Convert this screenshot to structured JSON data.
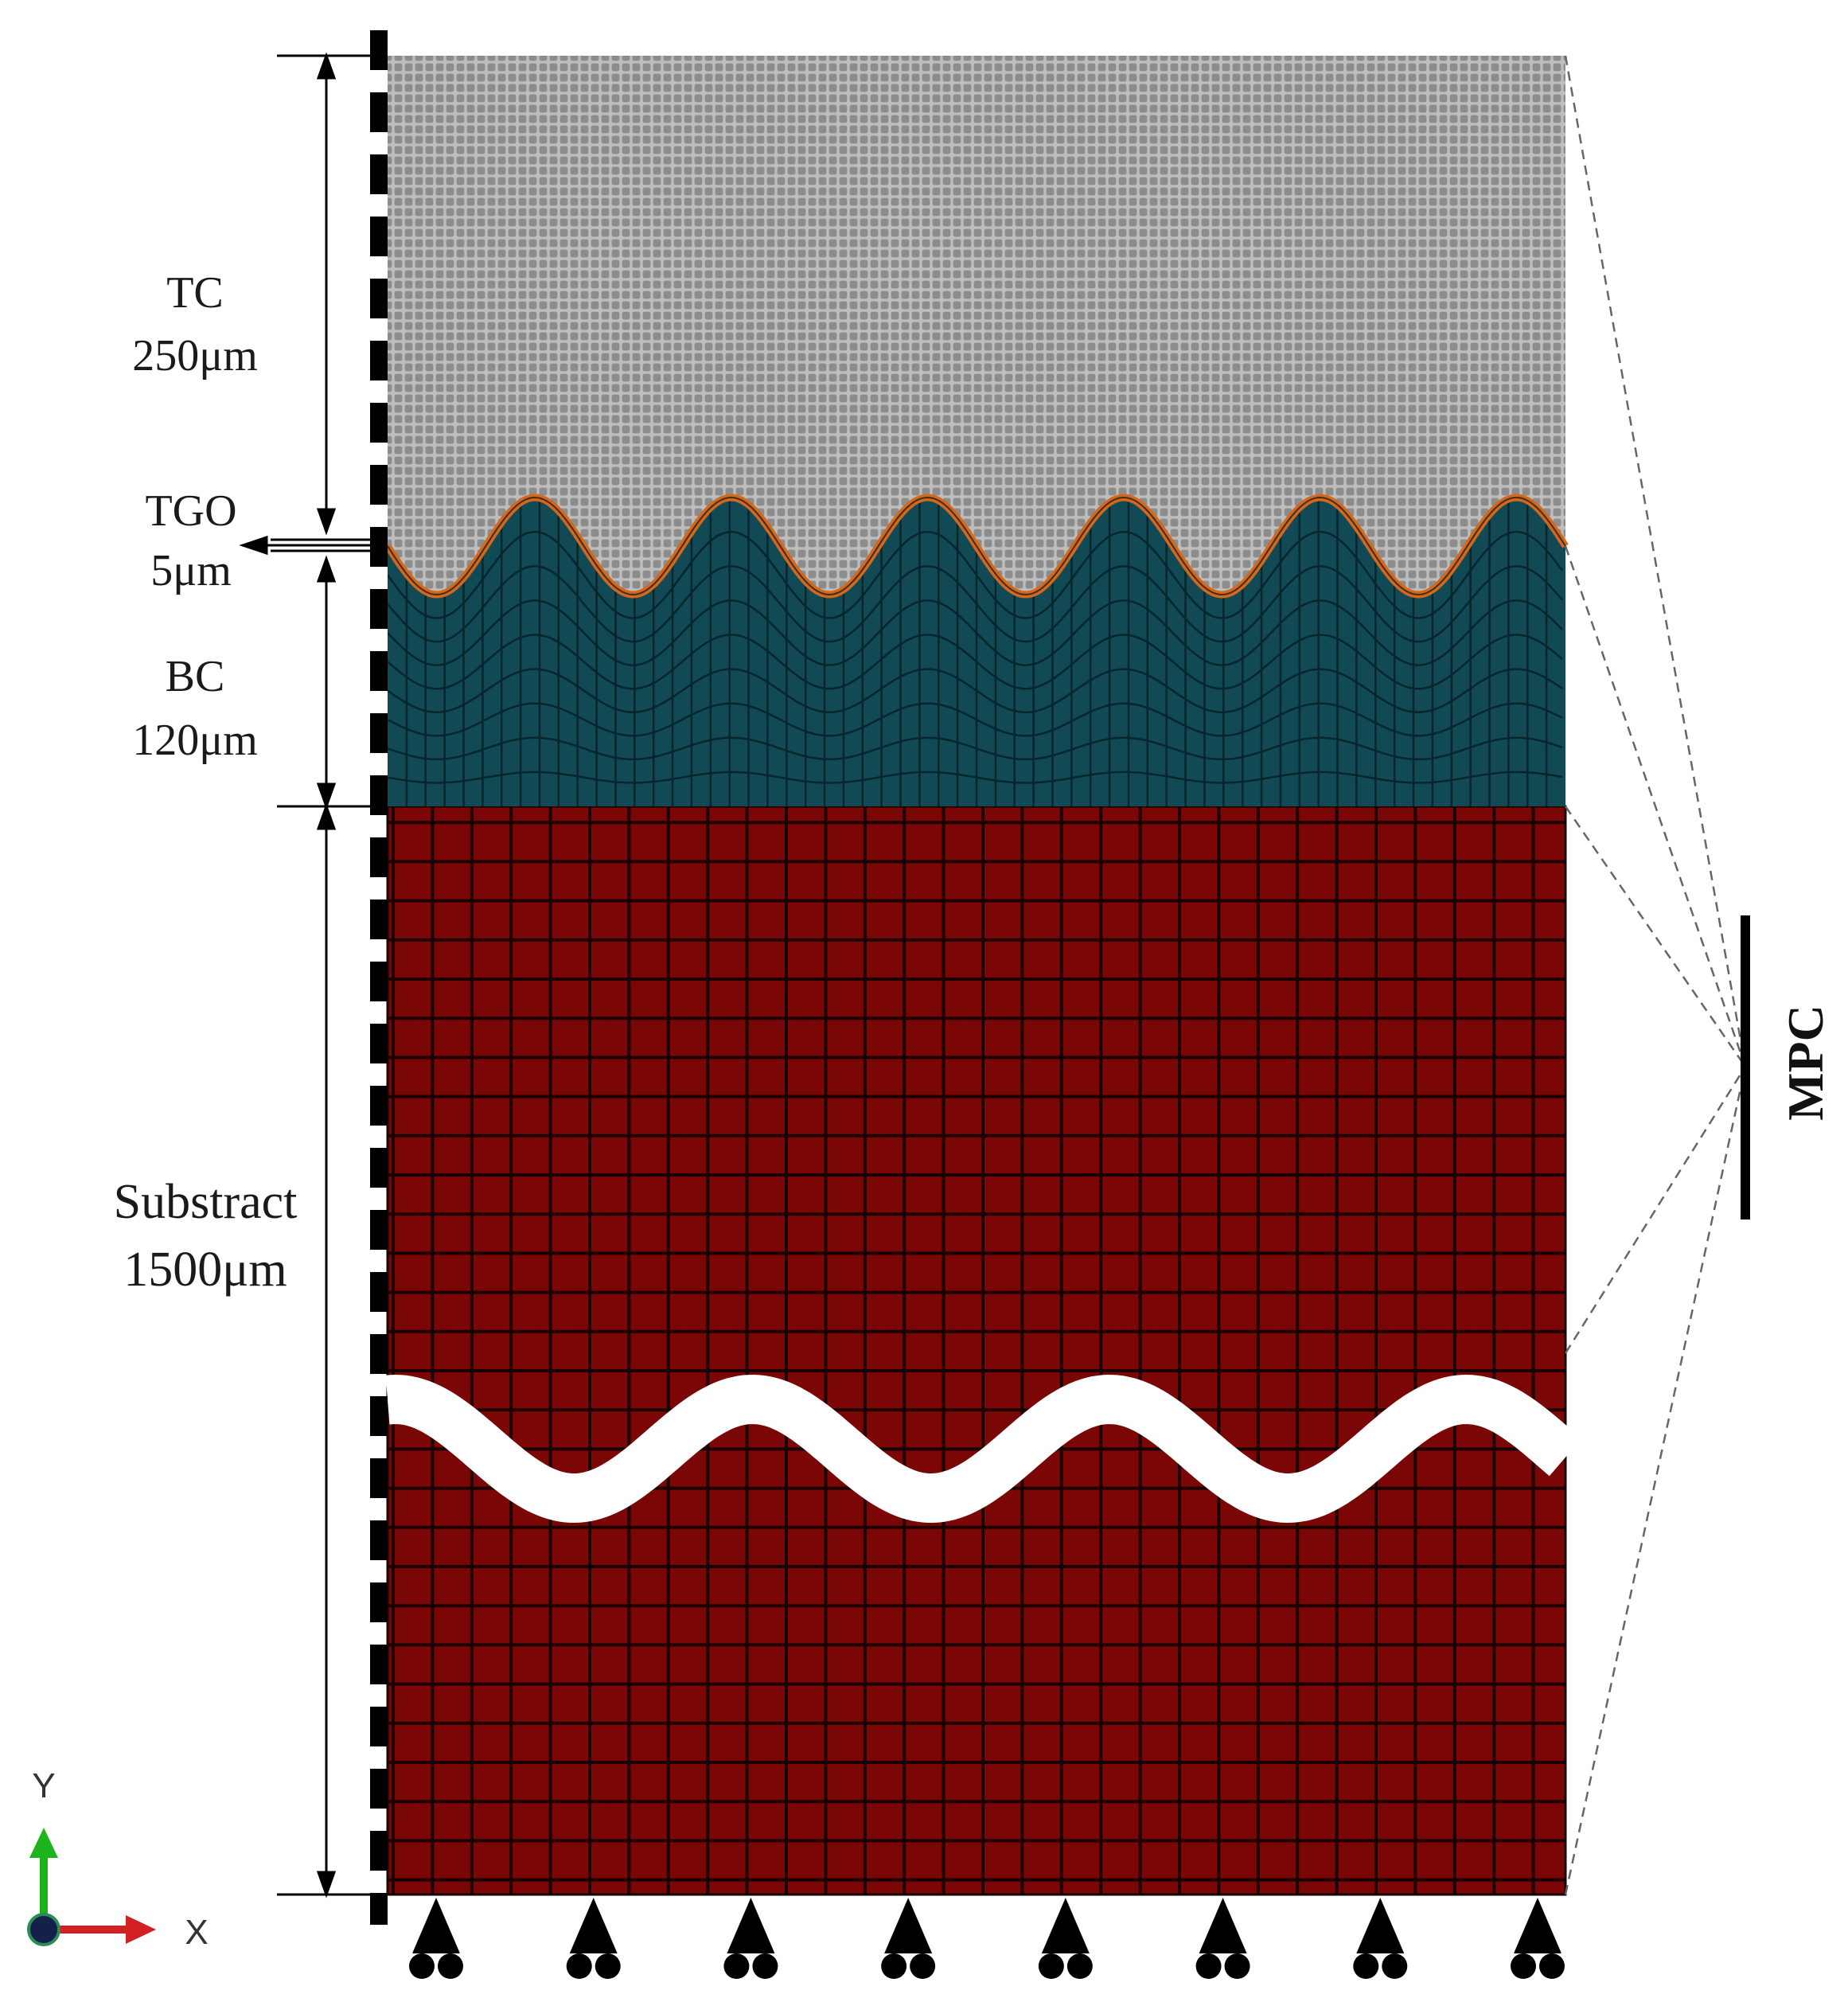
{
  "layers": {
    "tc": {
      "name": "TC",
      "thickness": "250μm",
      "color": "#8a8a8a"
    },
    "tgo": {
      "name": "TGO",
      "thickness": "5μm",
      "color": "#d2691e"
    },
    "bc": {
      "name": "BC",
      "thickness": "120μm",
      "color": "#114a55"
    },
    "substrate": {
      "name": "Substract",
      "thickness": "1500μm",
      "color": "#7a0606"
    }
  },
  "constraint": {
    "label": "MPC"
  },
  "axes": {
    "x_label": "X",
    "y_label": "Y",
    "x_color": "#d32020",
    "y_color": "#1db31d"
  },
  "interface": {
    "wave_count": 6
  },
  "supports": {
    "count": 8
  }
}
